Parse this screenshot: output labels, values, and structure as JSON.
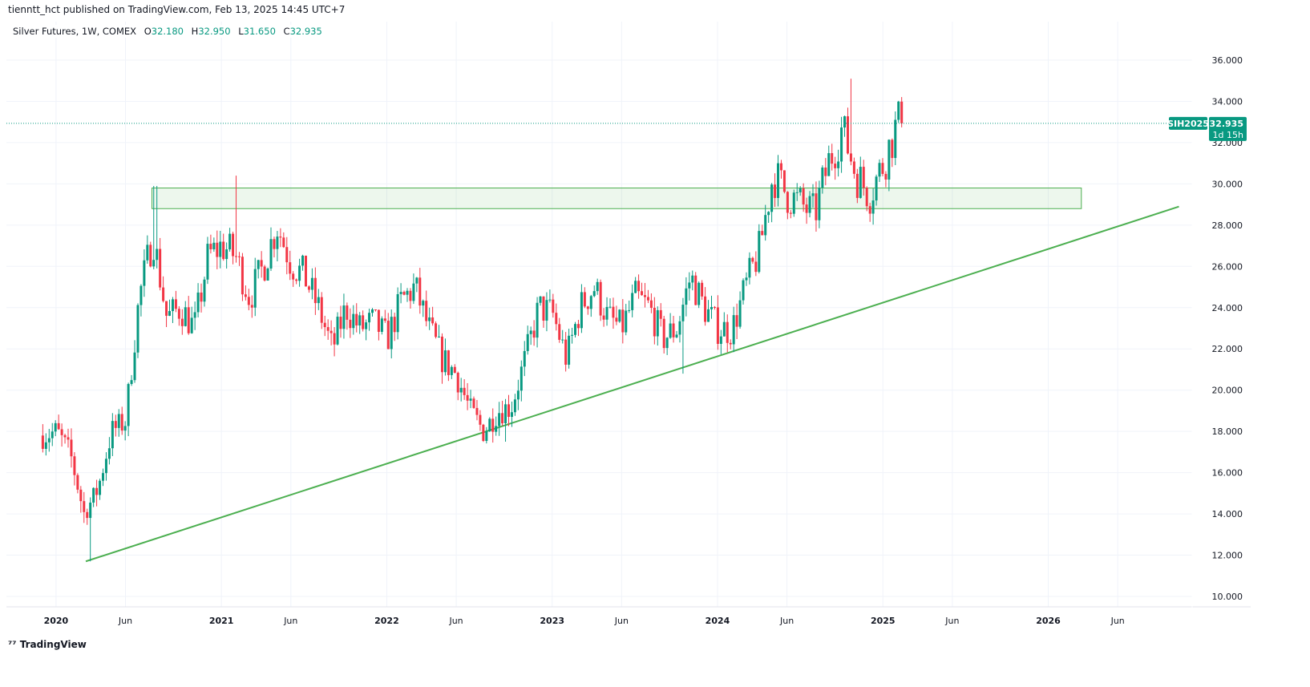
{
  "header": {
    "published": "tienntt_hct published on TradingView.com, Feb 13, 2025 14:45 UTC+7"
  },
  "legend": {
    "symbol": "Silver Futures, 1W, COMEX",
    "o_label": "O",
    "o": "32.180",
    "h_label": "H",
    "h": "32.950",
    "l_label": "L",
    "l": "31.650",
    "c_label": "C",
    "c": "32.935"
  },
  "price_tag": {
    "ticker": "SIH2025",
    "price": "32.935",
    "countdown": "1d 15h"
  },
  "footer": {
    "logo": "TradingView"
  },
  "colors": {
    "up": "#089981",
    "down": "#f23645",
    "drawing": "#4caf50"
  },
  "chart_data": {
    "type": "candlestick",
    "title": "Silver Futures, 1W, COMEX",
    "ylim": [
      9,
      37
    ],
    "y_ticks": [
      "10.000",
      "12.000",
      "14.000",
      "16.000",
      "18.000",
      "20.000",
      "22.000",
      "24.000",
      "26.000",
      "28.000",
      "30.000",
      "32.000",
      "34.000",
      "36.000"
    ],
    "x_ticks": [
      {
        "t": 2020.0,
        "label": "2020"
      },
      {
        "t": 2020.42,
        "label": "Jun"
      },
      {
        "t": 2021.0,
        "label": "2021"
      },
      {
        "t": 2021.42,
        "label": "Jun"
      },
      {
        "t": 2022.0,
        "label": "2022"
      },
      {
        "t": 2022.42,
        "label": "Jun"
      },
      {
        "t": 2023.0,
        "label": "2023"
      },
      {
        "t": 2023.42,
        "label": "Jun"
      },
      {
        "t": 2024.0,
        "label": "2024"
      },
      {
        "t": 2024.42,
        "label": "Jun"
      },
      {
        "t": 2025.0,
        "label": "2025"
      },
      {
        "t": 2025.42,
        "label": "Jun"
      },
      {
        "t": 2026.0,
        "label": "2026"
      },
      {
        "t": 2026.42,
        "label": "Jun"
      }
    ],
    "xlim": [
      2019.7,
      2026.87
    ],
    "monthly_closes_approx": {
      "start": 2019.92,
      "values": [
        17.8,
        18.0,
        16.9,
        14.0,
        15.2,
        18.0,
        18.5,
        24.5,
        27.5,
        23.5,
        24.0,
        23.0,
        26.5,
        27.0,
        26.5,
        24.5,
        26.0,
        28.0,
        26.2,
        25.5,
        24.0,
        22.0,
        24.0,
        23.0,
        23.3,
        22.5,
        24.3,
        25.0,
        23.0,
        21.5,
        20.8,
        19.0,
        18.0,
        19.0,
        19.2,
        21.5,
        24.0,
        23.7,
        21.5,
        24.0,
        25.0,
        23.5,
        23.0,
        24.5,
        24.0,
        22.5,
        23.0,
        25.5,
        24.0,
        23.0,
        22.9,
        25.0,
        26.8,
        30.5,
        29.5,
        29.0,
        28.5,
        31.0,
        32.7,
        30.5,
        29.5,
        31.0,
        32.935
      ]
    },
    "extremes": [
      {
        "t": 2020.21,
        "low": 11.7
      },
      {
        "t": 2020.6,
        "high": 29.9
      },
      {
        "t": 2021.09,
        "high": 30.4
      },
      {
        "t": 2022.72,
        "low": 17.5
      },
      {
        "t": 2023.8,
        "low": 20.8
      },
      {
        "t": 2024.81,
        "high": 35.1
      }
    ],
    "last_price": 32.935,
    "drawings": {
      "zone": {
        "t1": 2020.58,
        "t2": 2026.2,
        "p1": 28.8,
        "p2": 29.8
      },
      "trendline": {
        "t1": 2020.18,
        "p1": 11.7,
        "t2": 2026.79,
        "p2": 28.9
      }
    }
  }
}
